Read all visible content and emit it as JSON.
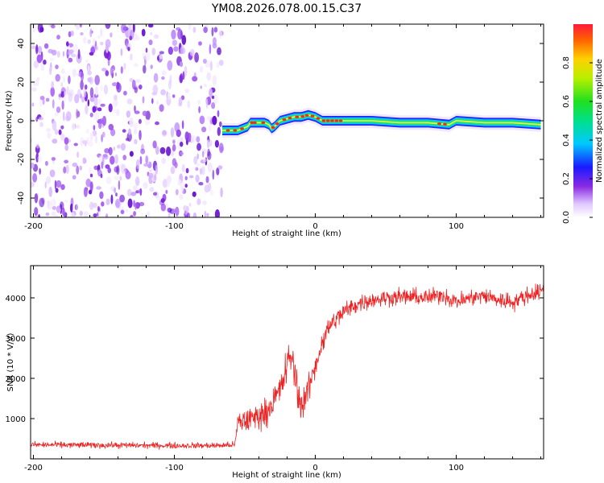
{
  "figure_title": "YM08.2026.078.00.15.C37",
  "colors": {
    "snr_line": "#ee2222",
    "noise_purple": "#7a1fe0",
    "background": "#ffffff",
    "axis": "#000000"
  },
  "chart_data": [
    {
      "type": "heatmap",
      "name": "spectrogram",
      "title": "",
      "xlabel": "Height of straight line (km)",
      "ylabel": "Frequency (Hz)",
      "xlim": [
        -202,
        162
      ],
      "ylim": [
        -50,
        50
      ],
      "xticks": [
        -200,
        -100,
        0,
        100
      ],
      "xticklabels": [
        "-200",
        "-100",
        "0",
        "100"
      ],
      "yticks": [
        -40,
        -20,
        0,
        20,
        40
      ],
      "yticklabels": [
        "-40",
        "-20",
        "0",
        "20",
        "40"
      ],
      "noise_region_x": [
        -202,
        -66
      ],
      "signal_start_x": -66,
      "signal_ridge": {
        "x": [
          -66,
          -55,
          -48,
          -46,
          -40,
          -36,
          -33,
          -31,
          -29,
          -25,
          -20,
          -15,
          -10,
          -5,
          0,
          5,
          20,
          40,
          60,
          80,
          95,
          100,
          120,
          140,
          160
        ],
        "freq": [
          -5,
          -5,
          -3,
          -1,
          -1,
          -1,
          -2,
          -4,
          -3,
          0,
          1,
          2,
          2,
          3,
          2,
          0,
          0,
          0,
          -1,
          -1,
          -2,
          0,
          -1,
          -1,
          -2
        ]
      },
      "colorbar": {
        "label": "Normalized spectral amplitude",
        "range": [
          0,
          1
        ],
        "ticks": [
          0,
          0.2,
          0.4,
          0.6,
          0.8
        ],
        "ticklabels": [
          "0.0",
          "0.2",
          "0.4",
          "0.6",
          "0.8"
        ]
      }
    },
    {
      "type": "line",
      "name": "snr",
      "title": "",
      "xlabel": "Height of straight line (km)",
      "ylabel": "SNR (10 * V/V)",
      "xlim": [
        -202,
        162
      ],
      "ylim": [
        0,
        4800
      ],
      "xticks": [
        -200,
        -100,
        0,
        100
      ],
      "xticklabels": [
        "-200",
        "-100",
        "0",
        "100"
      ],
      "yticks": [
        1000,
        2000,
        3000,
        4000
      ],
      "yticklabels": [
        "1000",
        "2000",
        "3000",
        "4000"
      ],
      "series": [
        {
          "name": "SNR",
          "x": [
            -202,
            -150,
            -100,
            -70,
            -57,
            -55,
            -45,
            -35,
            -25,
            -20,
            -17,
            -15,
            -12,
            -10,
            -5,
            0,
            5,
            10,
            20,
            30,
            40,
            50,
            60,
            70,
            80,
            90,
            100,
            110,
            120,
            130,
            140,
            150,
            160,
            162
          ],
          "y": [
            350,
            340,
            330,
            330,
            350,
            900,
            1000,
            1150,
            1700,
            2300,
            2600,
            2200,
            1600,
            1300,
            1700,
            2300,
            2900,
            3300,
            3650,
            3850,
            3950,
            4000,
            4030,
            4020,
            4000,
            4080,
            3900,
            4000,
            4050,
            3950,
            3900,
            4050,
            4180,
            4200
          ],
          "noise_amplitude": [
            110,
            110,
            110,
            110,
            110,
            450,
            480,
            500,
            550,
            700,
            700,
            700,
            650,
            600,
            500,
            450,
            400,
            380,
            350,
            320,
            300,
            300,
            300,
            300,
            300,
            300,
            300,
            300,
            300,
            320,
            320,
            300,
            300,
            300
          ]
        }
      ]
    }
  ]
}
